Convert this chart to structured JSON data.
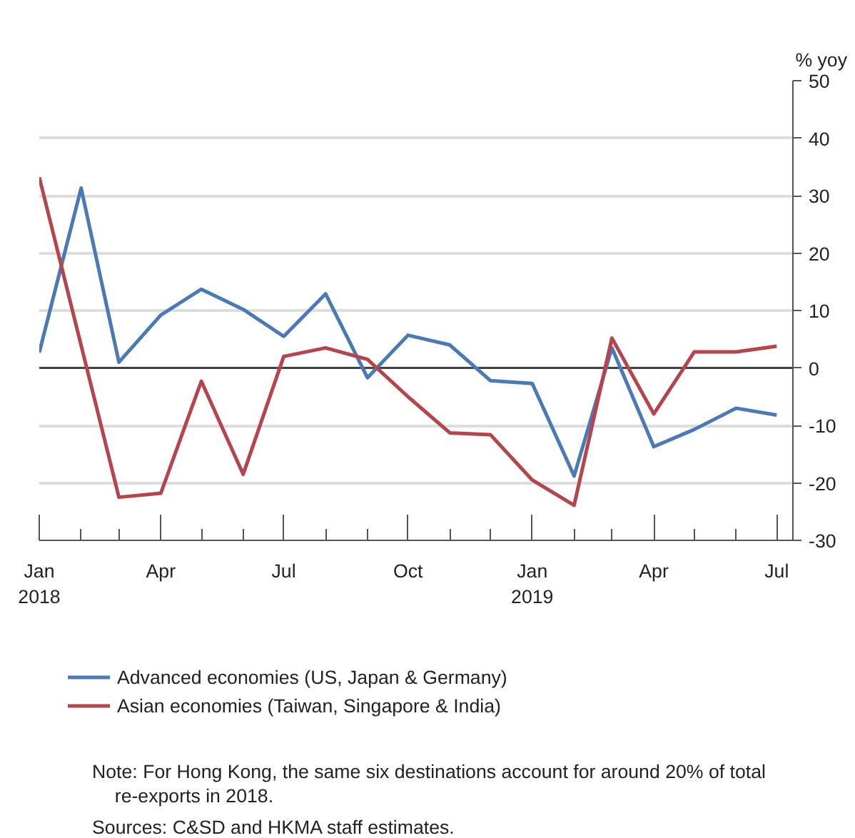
{
  "chart_data": {
    "type": "line",
    "ylabel": "% yoy",
    "x": [
      "2018-01",
      "2018-02",
      "2018-03",
      "2018-04",
      "2018-05",
      "2018-06",
      "2018-07",
      "2018-08",
      "2018-09",
      "2018-10",
      "2018-11",
      "2018-12",
      "2019-01",
      "2019-02",
      "2019-03",
      "2019-04",
      "2019-05",
      "2019-06",
      "2019-07"
    ],
    "series": [
      {
        "name": "Advanced economies (US, Japan & Germany)",
        "color": "#4a7ab5",
        "values": [
          2.7,
          31.3,
          1.0,
          9.2,
          13.7,
          10.2,
          5.5,
          12.9,
          -1.7,
          5.7,
          4.0,
          -2.2,
          -2.7,
          -18.8,
          3.5,
          -13.7,
          -10.7,
          -7.0,
          -8.2
        ]
      },
      {
        "name": "Asian economies (Taiwan, Singapore & India)",
        "color": "#b5454b",
        "x": [
          "2018-01",
          "2018-03",
          "2018-04",
          "2018-05",
          "2018-06",
          "2018-07",
          "2018-08",
          "2018-09",
          "2018-10",
          "2018-11",
          "2018-12",
          "2019-01",
          "2019-02",
          "2019-03",
          "2019-04",
          "2019-05",
          "2019-06",
          "2019-07"
        ],
        "values": [
          33.2,
          -22.5,
          -21.8,
          -2.3,
          -18.5,
          2.0,
          3.5,
          1.5,
          -5.0,
          -11.3,
          -11.6,
          -19.5,
          -23.9,
          5.2,
          -8.0,
          2.8,
          2.8,
          3.8
        ]
      }
    ],
    "xlim": [
      "2018-01-01",
      "2019-07-13"
    ],
    "xticks": [
      {
        "value": "2018-01",
        "label": "Jan\n2018"
      },
      {
        "value": "2018-02",
        "label": null
      },
      {
        "value": "2018-03",
        "label": null
      },
      {
        "value": "2018-04",
        "label": "Apr"
      },
      {
        "value": "2018-05",
        "label": null
      },
      {
        "value": "2018-06",
        "label": null
      },
      {
        "value": "2018-07",
        "label": "Jul"
      },
      {
        "value": "2018-08",
        "label": null
      },
      {
        "value": "2018-09",
        "label": null
      },
      {
        "value": "2018-10",
        "label": "Oct"
      },
      {
        "value": "2018-11",
        "label": null
      },
      {
        "value": "2018-12",
        "label": null
      },
      {
        "value": "2019-01",
        "label": "Jan\n2019"
      },
      {
        "value": "2019-02",
        "label": null
      },
      {
        "value": "2019-03",
        "label": null
      },
      {
        "value": "2019-04",
        "label": "Apr"
      },
      {
        "value": "2019-05",
        "label": null
      },
      {
        "value": "2019-06",
        "label": null
      },
      {
        "value": "2019-07",
        "label": "Jul"
      }
    ],
    "ylim": [
      -30,
      50
    ],
    "yticks": [
      -30,
      -20,
      -10,
      0,
      10,
      20,
      30,
      40,
      50
    ],
    "grid": "y",
    "ref_lines": [
      {
        "axis": "y",
        "value": 0,
        "color": "#000000"
      }
    ],
    "legend": "bottom",
    "annotations": [
      "Note: For Hong Kong, the same six destinations account for around 20% of total re-exports in 2018.",
      "Sources: C&SD and HKMA staff estimates."
    ]
  }
}
